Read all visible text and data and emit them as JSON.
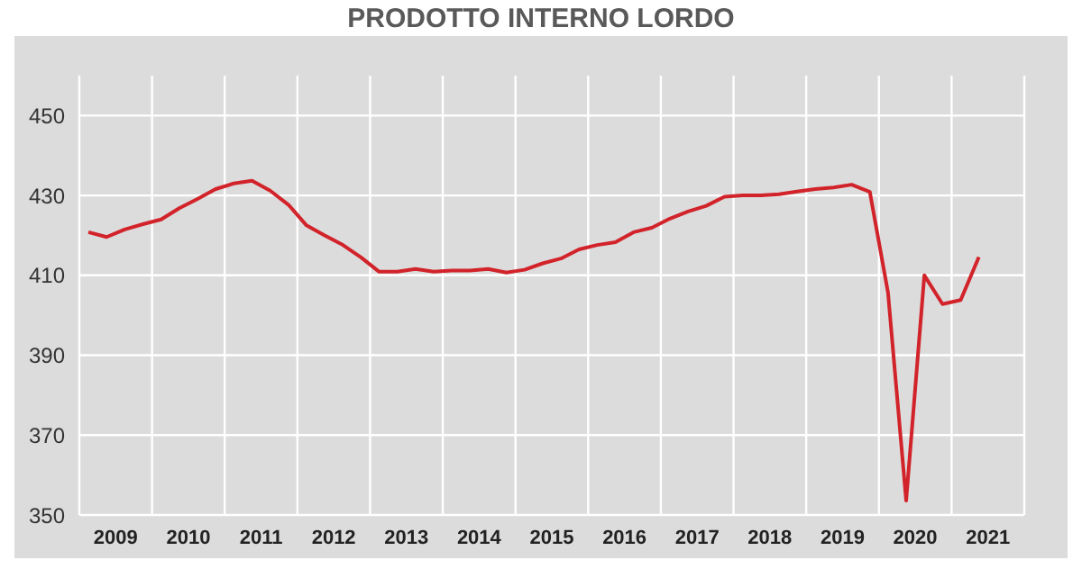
{
  "chart_data": {
    "type": "line",
    "title": "PRODOTTO INTERNO LORDO",
    "x": [
      2009.125,
      2009.375,
      2009.625,
      2009.875,
      2010.125,
      2010.375,
      2010.625,
      2010.875,
      2011.125,
      2011.375,
      2011.625,
      2011.875,
      2012.125,
      2012.375,
      2012.625,
      2012.875,
      2013.125,
      2013.375,
      2013.625,
      2013.875,
      2014.125,
      2014.375,
      2014.625,
      2014.875,
      2015.125,
      2015.375,
      2015.625,
      2015.875,
      2016.125,
      2016.375,
      2016.625,
      2016.875,
      2017.125,
      2017.375,
      2017.625,
      2017.875,
      2018.125,
      2018.375,
      2018.625,
      2018.875,
      2019.125,
      2019.375,
      2019.625,
      2019.875,
      2020.125,
      2020.375,
      2020.625,
      2020.875,
      2021.125,
      2021.375
    ],
    "series": [
      {
        "color": "#d2232a",
        "values": [
          420.8,
          419.6,
          421.5,
          422.8,
          424,
          426.8,
          429.1,
          431.6,
          433,
          433.7,
          431.2,
          427.7,
          422.5,
          420,
          417.6,
          414.5,
          410.9,
          410.9,
          411.6,
          410.9,
          411.2,
          411.2,
          411.6,
          410.7,
          411.4,
          413,
          414.2,
          416.5,
          417.6,
          418.3,
          420.8,
          421.9,
          424.2,
          426,
          427.4,
          429.7,
          430,
          430,
          430.3,
          431,
          431.6,
          432,
          432.7,
          430.9,
          405.7,
          353.6,
          410,
          402.8,
          403.8,
          414.6
        ]
      }
    ],
    "xlim": [
      2009,
      2022
    ],
    "xticks": [
      {
        "value": 2009,
        "label": null
      },
      {
        "value": 2009.5,
        "label": "2009"
      },
      {
        "value": 2010,
        "label": null
      },
      {
        "value": 2010.5,
        "label": "2010"
      },
      {
        "value": 2011,
        "label": null
      },
      {
        "value": 2011.5,
        "label": "2011"
      },
      {
        "value": 2012,
        "label": null
      },
      {
        "value": 2012.5,
        "label": "2012"
      },
      {
        "value": 2013,
        "label": null
      },
      {
        "value": 2013.5,
        "label": "2013"
      },
      {
        "value": 2014,
        "label": null
      },
      {
        "value": 2014.5,
        "label": "2014"
      },
      {
        "value": 2015,
        "label": null
      },
      {
        "value": 2015.5,
        "label": "2015"
      },
      {
        "value": 2016,
        "label": null
      },
      {
        "value": 2016.5,
        "label": "2016"
      },
      {
        "value": 2017,
        "label": null
      },
      {
        "value": 2017.5,
        "label": "2017"
      },
      {
        "value": 2018,
        "label": null
      },
      {
        "value": 2018.5,
        "label": "2018"
      },
      {
        "value": 2019,
        "label": null
      },
      {
        "value": 2019.5,
        "label": "2019"
      },
      {
        "value": 2020,
        "label": null
      },
      {
        "value": 2020.5,
        "label": "2020"
      },
      {
        "value": 2021,
        "label": null
      },
      {
        "value": 2021.5,
        "label": "2021"
      },
      {
        "value": 2022,
        "label": null
      }
    ],
    "ylim": [
      350,
      460
    ],
    "yticks": [
      350,
      370,
      390,
      410,
      430,
      450
    ],
    "grid": true,
    "legend": false,
    "marker": "none",
    "line_style": "solid"
  }
}
